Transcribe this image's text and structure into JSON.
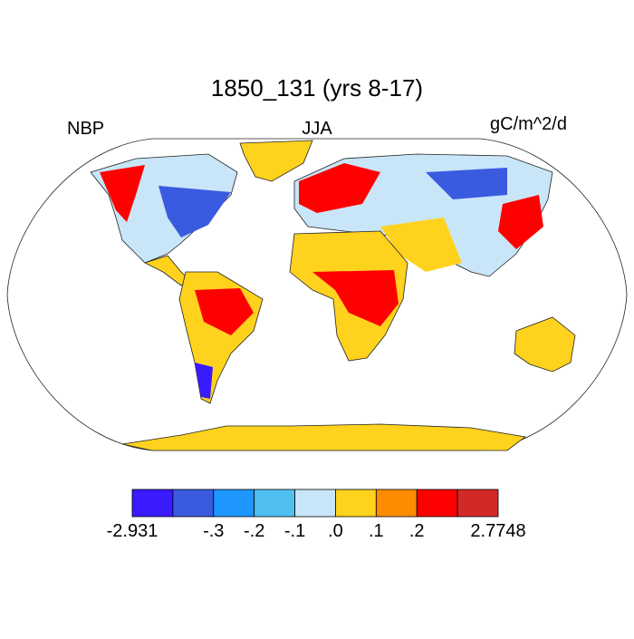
{
  "header": {
    "title": "1850_131 (yrs 8-17)",
    "left": "NBP",
    "center": "JJA",
    "right": "gC/m^2/d"
  },
  "colorbar": {
    "colors": [
      "#3a1aff",
      "#3a5be0",
      "#1e96ff",
      "#50c0f0",
      "#c8e6f8",
      "#ffd21e",
      "#ff8c00",
      "#ff0000",
      "#d22828"
    ],
    "levels": [
      {
        "value": -2.931,
        "label": "-2.931"
      },
      null,
      {
        "value": -0.3,
        "label": "-.3"
      },
      {
        "value": -0.2,
        "label": "-.2"
      },
      {
        "value": -0.1,
        "label": "-.1"
      },
      {
        "value": 0,
        "label": ".0"
      },
      {
        "value": 0.1,
        "label": ".1"
      },
      {
        "value": 0.2,
        "label": ".2"
      },
      null,
      {
        "value": 2.7748,
        "label": "2.7748"
      }
    ]
  }
}
